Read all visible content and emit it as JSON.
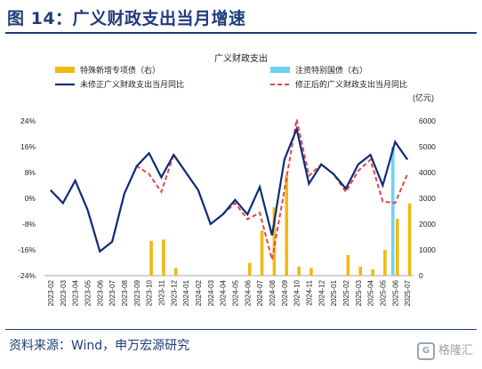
{
  "figure_title": "图 14：广义财政支出当月增速",
  "source": "资料来源：Wind，申万宏源研究",
  "watermark": "格隆汇",
  "colors": {
    "brand": "#1f3d7a",
    "special_bond": "#f2b90f",
    "ultra_bond": "#6fd2f5",
    "unrevised_line": "#0d2c7a",
    "revised_line": "#e0474c"
  },
  "chart_data": {
    "type": "bar+line",
    "title": "广义财政支出",
    "y_left": {
      "ticks": [
        "24%",
        "16%",
        "8%",
        "0%",
        "-8%",
        "-16%",
        "-24%"
      ],
      "range": [
        -24,
        24
      ],
      "unit": "%"
    },
    "y_right": {
      "ticks": [
        "6000",
        "5000",
        "4000",
        "3000",
        "2000",
        "1000",
        "0"
      ],
      "range": [
        0,
        6000
      ],
      "unit_label": "(亿元)"
    },
    "categories": [
      "2023-02",
      "2023-03",
      "2023-04",
      "2023-05",
      "2023-06",
      "2023-07",
      "2023-08",
      "2023-09",
      "2023-10",
      "2023-11",
      "2023-12",
      "2024-01",
      "2024-02",
      "2024-03",
      "2024-04",
      "2024-05",
      "2024-06",
      "2024-07",
      "2024-08",
      "2024-09",
      "2024-10",
      "2024-11",
      "2024-12",
      "2025-01",
      "2025-02",
      "2025-03",
      "2025-04",
      "2025-05",
      "2025-06",
      "2025-07"
    ],
    "legend": {
      "special_bond": "特殊新增专项债（右）",
      "ultra_bond": "注资特别国债（右）",
      "unrevised": "未修正广义财政支出当月同比",
      "revised": "修正后的广义财政支出当月同比"
    },
    "series": [
      {
        "name": "特殊新增专项债（右）",
        "type": "bar",
        "axis": "right",
        "values": [
          0,
          0,
          0,
          0,
          0,
          0,
          0,
          0,
          1350,
          1400,
          300,
          0,
          0,
          0,
          0,
          0,
          500,
          1750,
          2650,
          3900,
          350,
          300,
          0,
          0,
          800,
          350,
          250,
          1000,
          2200,
          2800
        ]
      },
      {
        "name": "注资特别国债（右）",
        "type": "bar",
        "axis": "right",
        "values": [
          0,
          0,
          0,
          0,
          0,
          0,
          0,
          0,
          0,
          0,
          0,
          0,
          0,
          0,
          0,
          0,
          0,
          0,
          0,
          0,
          0,
          0,
          0,
          0,
          0,
          0,
          0,
          0,
          5000,
          0
        ]
      },
      {
        "name": "未修正广义财政支出当月同比",
        "type": "line",
        "axis": "left",
        "values": [
          2.5,
          -1.5,
          5.5,
          -3.5,
          -16.5,
          -13.5,
          1.5,
          10.0,
          14.0,
          6.5,
          13.5,
          8.0,
          2.5,
          -8.0,
          -5.0,
          -0.5,
          -5.0,
          3.5,
          -11.5,
          12.0,
          21.5,
          4.5,
          10.5,
          7.5,
          3.0,
          10.5,
          13.5,
          4.0,
          17.5,
          12.0
        ]
      },
      {
        "name": "修正后的广义财政支出当月同比",
        "type": "line",
        "axis": "left",
        "values": [
          2.5,
          -1.5,
          5.5,
          -3.5,
          -16.5,
          -13.5,
          1.5,
          10.0,
          7.5,
          2.0,
          13.5,
          8.0,
          2.5,
          -8.0,
          -5.0,
          -1.5,
          -6.5,
          -4.5,
          -19.0,
          2.5,
          24.5,
          7.0,
          10.5,
          7.5,
          2.0,
          8.5,
          12.0,
          -1.0,
          -1.5,
          7.5
        ]
      }
    ]
  }
}
